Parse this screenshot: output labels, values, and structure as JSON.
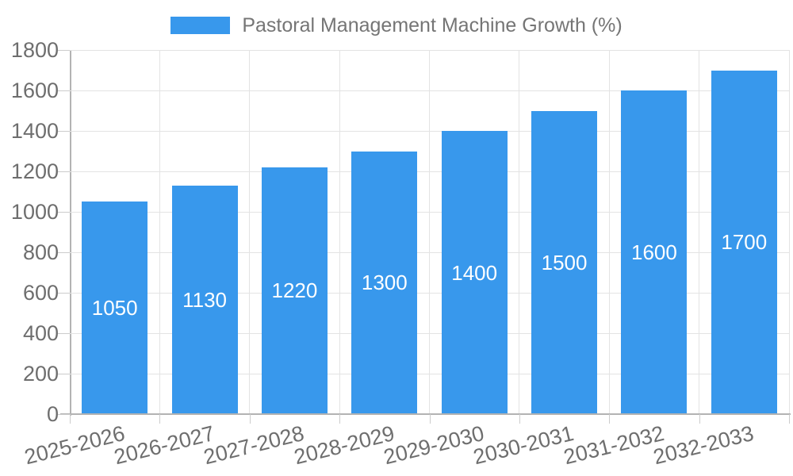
{
  "chart_data": {
    "type": "bar",
    "title": "Pastoral Management Machine Growth (%)",
    "categories": [
      "2025-2026",
      "2026-2027",
      "2027-2028",
      "2028-2029",
      "2029-2030",
      "2030-2031",
      "2031-2032",
      "2032-2033"
    ],
    "values": [
      1050,
      1130,
      1220,
      1300,
      1400,
      1500,
      1600,
      1700
    ],
    "xlabel": "",
    "ylabel": "",
    "ylim": [
      0,
      1800
    ],
    "ytick_step": 200,
    "grid": "on",
    "legend_position": "top-center",
    "bar_labels_inside": true
  },
  "colors": {
    "bar": "#3898ec",
    "bar_label": "#ffffff",
    "legend_text": "#757575",
    "axis_text": "#6e6e6e",
    "gridline": "#e3e3e3",
    "axis_line": "#b3b3b3",
    "tick_mark": "#cccccc",
    "background": "#ffffff"
  }
}
